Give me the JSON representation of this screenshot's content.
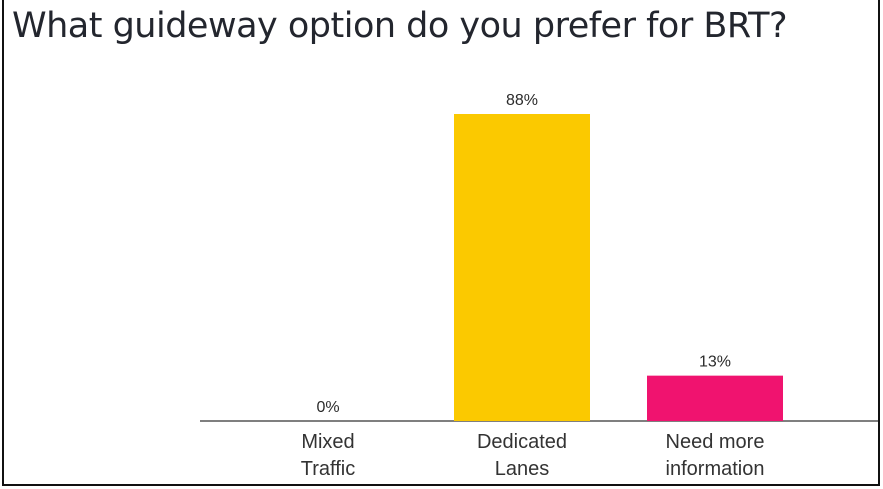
{
  "chart_data": {
    "type": "bar",
    "title": "What guideway option do you prefer for BRT?",
    "categories": [
      [
        "Mixed",
        "Traffic"
      ],
      [
        "Dedicated",
        "Lanes"
      ],
      [
        "Need more",
        "information"
      ]
    ],
    "values": [
      0,
      88,
      13
    ],
    "value_labels": [
      "0%",
      "88%",
      "13%"
    ],
    "colors": [
      "#1f4e8c",
      "#fbc900",
      "#f0136f"
    ],
    "axis_color": "#555555",
    "ylim": [
      0,
      100
    ],
    "grid": false,
    "legend": "none"
  }
}
